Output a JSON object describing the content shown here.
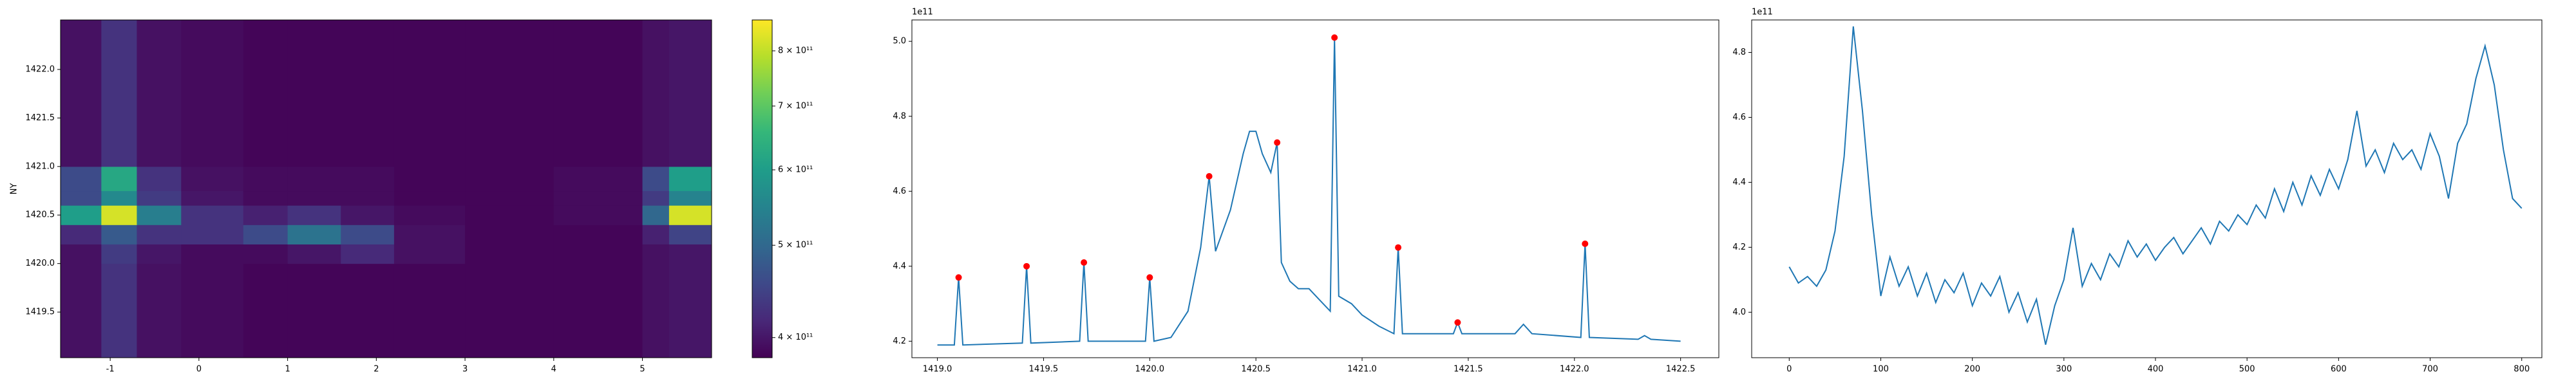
{
  "chart_data": [
    {
      "type": "heatmap",
      "ylabel": "NY",
      "xlim": [
        -1.56,
        5.78
      ],
      "ylim": [
        1419.03,
        1422.51
      ],
      "xticks": [
        -1,
        0,
        1,
        2,
        3,
        4,
        5
      ],
      "yticks": [
        {
          "value": 1419.5,
          "label": "1419.5"
        },
        {
          "value": 1420,
          "label": "1420.0"
        },
        {
          "value": 1420.5,
          "label": "1420.5"
        },
        {
          "value": 1421,
          "label": "1421.0"
        },
        {
          "value": 1421.5,
          "label": "1421.5"
        },
        {
          "value": 1422,
          "label": "1422.0"
        }
      ],
      "x_edges": [
        -1.56,
        -1.1,
        -0.7,
        -0.2,
        0.5,
        1.0,
        1.6,
        2.2,
        3.0,
        4.0,
        5.0,
        5.3,
        5.78
      ],
      "y_edges": [
        1419.03,
        1420.0,
        1420.2,
        1420.4,
        1420.6,
        1420.75,
        1421.0,
        1422.51
      ],
      "z": [
        [
          395000000000.0,
          430000000000.0,
          395000000000.0,
          390000000000.0,
          385000000000.0,
          385000000000.0,
          385000000000.0,
          385000000000.0,
          385000000000.0,
          385000000000.0,
          395000000000.0,
          400000000000.0
        ],
        [
          395000000000.0,
          440000000000.0,
          400000000000.0,
          390000000000.0,
          390000000000.0,
          400000000000.0,
          420000000000.0,
          395000000000.0,
          385000000000.0,
          385000000000.0,
          395000000000.0,
          400000000000.0
        ],
        [
          420000000000.0,
          480000000000.0,
          430000000000.0,
          430000000000.0,
          460000000000.0,
          520000000000.0,
          460000000000.0,
          395000000000.0,
          385000000000.0,
          385000000000.0,
          410000000000.0,
          450000000000.0
        ],
        [
          600000000000.0,
          820000000000.0,
          540000000000.0,
          430000000000.0,
          410000000000.0,
          430000000000.0,
          400000000000.0,
          390000000000.0,
          385000000000.0,
          390000000000.0,
          500000000000.0,
          820000000000.0
        ],
        [
          460000000000.0,
          560000000000.0,
          440000000000.0,
          400000000000.0,
          390000000000.0,
          390000000000.0,
          390000000000.0,
          385000000000.0,
          385000000000.0,
          390000000000.0,
          440000000000.0,
          550000000000.0
        ],
        [
          460000000000.0,
          620000000000.0,
          430000000000.0,
          395000000000.0,
          390000000000.0,
          390000000000.0,
          390000000000.0,
          385000000000.0,
          385000000000.0,
          390000000000.0,
          460000000000.0,
          600000000000.0
        ],
        [
          395000000000.0,
          430000000000.0,
          395000000000.0,
          390000000000.0,
          385000000000.0,
          385000000000.0,
          385000000000.0,
          385000000000.0,
          385000000000.0,
          385000000000.0,
          395000000000.0,
          400000000000.0
        ]
      ],
      "colormap": "viridis",
      "clim": [
        381000000000.0,
        862000000000.0
      ],
      "cbar_log": true,
      "cbar_ticks": [
        {
          "value": 400000000000.0,
          "label": "4 × 10¹¹"
        },
        {
          "value": 500000000000.0,
          "label": "5 × 10¹¹"
        },
        {
          "value": 600000000000.0,
          "label": "6 × 10¹¹"
        },
        {
          "value": 700000000000.0,
          "label": "7 × 10¹¹"
        },
        {
          "value": 800000000000.0,
          "label": "8 × 10¹¹"
        }
      ]
    },
    {
      "type": "line",
      "y_offset_label": "1e11",
      "xlim": [
        1418.88,
        1422.68
      ],
      "ylim": [
        4.156,
        5.057
      ],
      "xticks": [
        {
          "value": 1419,
          "label": "1419.0"
        },
        {
          "value": 1419.5,
          "label": "1419.5"
        },
        {
          "value": 1420,
          "label": "1420.0"
        },
        {
          "value": 1420.5,
          "label": "1420.5"
        },
        {
          "value": 1421,
          "label": "1421.0"
        },
        {
          "value": 1421.5,
          "label": "1421.5"
        },
        {
          "value": 1422,
          "label": "1422.0"
        },
        {
          "value": 1422.5,
          "label": "1422.5"
        }
      ],
      "yticks": [
        4.2,
        4.4,
        4.6,
        4.8,
        {
          "value": 5,
          "label": "5.0"
        }
      ],
      "series": [
        {
          "type": "line",
          "color": "#1f77b4",
          "x": [
            1419.0,
            1419.08,
            1419.1,
            1419.12,
            1419.4,
            1419.42,
            1419.44,
            1419.67,
            1419.69,
            1419.71,
            1419.98,
            1420.0,
            1420.02,
            1420.1,
            1420.18,
            1420.24,
            1420.28,
            1420.31,
            1420.38,
            1420.44,
            1420.47,
            1420.5,
            1420.53,
            1420.57,
            1420.6,
            1420.62,
            1420.66,
            1420.7,
            1420.75,
            1420.8,
            1420.85,
            1420.87,
            1420.89,
            1420.95,
            1421.0,
            1421.08,
            1421.15,
            1421.17,
            1421.19,
            1421.43,
            1421.45,
            1421.47,
            1421.72,
            1421.76,
            1421.8,
            1422.03,
            1422.05,
            1422.07,
            1422.3,
            1422.33,
            1422.36,
            1422.5
          ],
          "values": [
            4.19,
            4.19,
            4.37,
            4.19,
            4.195,
            4.4,
            4.195,
            4.2,
            4.41,
            4.2,
            4.2,
            4.37,
            4.2,
            4.21,
            4.28,
            4.45,
            4.64,
            4.44,
            4.55,
            4.7,
            4.76,
            4.76,
            4.7,
            4.65,
            4.73,
            4.41,
            4.36,
            4.34,
            4.34,
            4.31,
            4.28,
            5.01,
            4.32,
            4.3,
            4.27,
            4.24,
            4.22,
            4.45,
            4.22,
            4.22,
            4.25,
            4.22,
            4.22,
            4.245,
            4.22,
            4.21,
            4.46,
            4.21,
            4.205,
            4.215,
            4.205,
            4.2
          ]
        },
        {
          "type": "scatter",
          "color": "#ff0000",
          "x": [
            1419.1,
            1419.42,
            1419.69,
            1420.0,
            1420.28,
            1420.6,
            1420.87,
            1421.17,
            1421.45,
            1422.05
          ],
          "values": [
            4.37,
            4.4,
            4.41,
            4.37,
            4.64,
            4.73,
            5.01,
            4.45,
            4.25,
            4.46
          ]
        }
      ]
    },
    {
      "type": "line",
      "y_offset_label": "1e11",
      "xlim": [
        -41,
        822
      ],
      "ylim": [
        3.86,
        4.9
      ],
      "xticks": [
        0,
        100,
        200,
        300,
        400,
        500,
        600,
        700,
        800
      ],
      "yticks": [
        {
          "value": 4,
          "label": "4.0"
        },
        4.2,
        4.4,
        4.6,
        4.8
      ],
      "series": [
        {
          "type": "line",
          "color": "#1f77b4",
          "x": [
            0,
            10,
            20,
            30,
            40,
            50,
            60,
            70,
            80,
            90,
            100,
            110,
            120,
            130,
            140,
            150,
            160,
            170,
            180,
            190,
            200,
            210,
            220,
            230,
            240,
            250,
            260,
            270,
            280,
            290,
            300,
            310,
            320,
            330,
            340,
            350,
            360,
            370,
            380,
            390,
            400,
            410,
            420,
            430,
            440,
            450,
            460,
            470,
            480,
            490,
            500,
            510,
            520,
            530,
            540,
            550,
            560,
            570,
            580,
            590,
            600,
            610,
            620,
            630,
            640,
            650,
            660,
            670,
            680,
            690,
            700,
            710,
            720,
            730,
            740,
            750,
            760,
            770,
            780,
            790,
            800
          ],
          "values": [
            4.14,
            4.09,
            4.11,
            4.08,
            4.13,
            4.25,
            4.48,
            4.88,
            4.62,
            4.3,
            4.05,
            4.17,
            4.08,
            4.14,
            4.05,
            4.12,
            4.03,
            4.1,
            4.06,
            4.12,
            4.02,
            4.09,
            4.05,
            4.11,
            4.0,
            4.06,
            3.97,
            4.04,
            3.9,
            4.02,
            4.1,
            4.26,
            4.08,
            4.15,
            4.1,
            4.18,
            4.14,
            4.22,
            4.17,
            4.21,
            4.16,
            4.2,
            4.23,
            4.18,
            4.22,
            4.26,
            4.21,
            4.28,
            4.25,
            4.3,
            4.27,
            4.33,
            4.29,
            4.38,
            4.31,
            4.4,
            4.33,
            4.42,
            4.36,
            4.44,
            4.38,
            4.47,
            4.62,
            4.45,
            4.5,
            4.43,
            4.52,
            4.47,
            4.5,
            4.44,
            4.55,
            4.48,
            4.35,
            4.52,
            4.58,
            4.72,
            4.82,
            4.7,
            4.5,
            4.35,
            4.32
          ]
        }
      ]
    }
  ]
}
